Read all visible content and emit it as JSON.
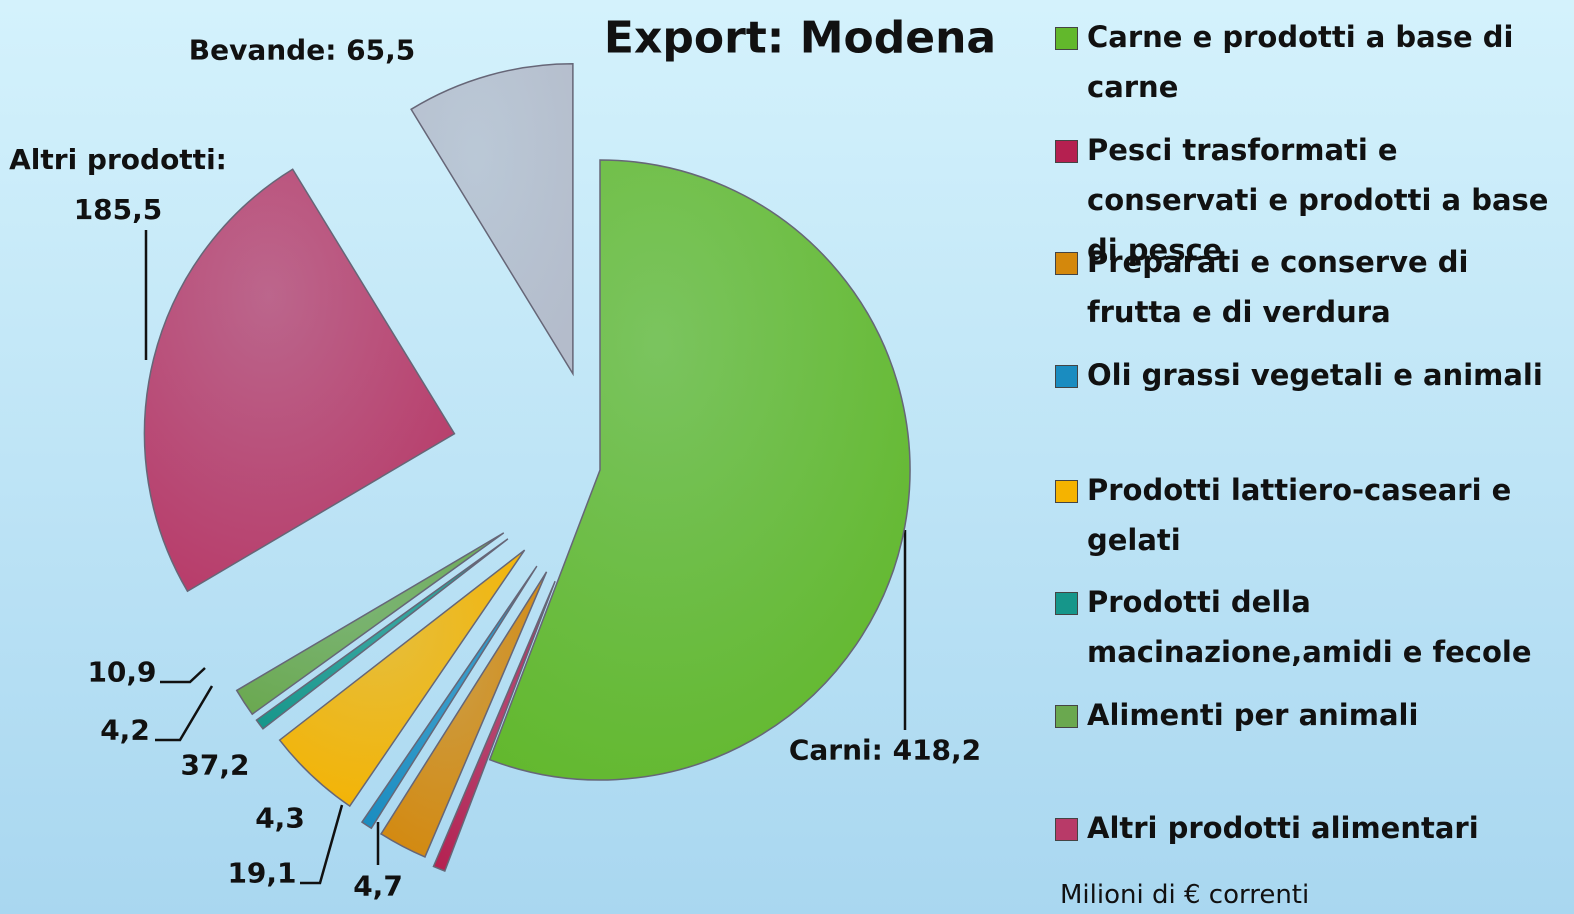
{
  "chart_data": {
    "type": "pie",
    "title": "Export: Modena",
    "categories": [
      "Carne e prodotti a base di carne",
      "Pesci trasformati e conservati e prodotti a base di pesce",
      "Preparati e conserve di frutta e di verdura",
      "Oli grassi vegetali e animali",
      "Prodotti lattiero-caseari e gelati",
      "Prodotti della macinazione,amidi e fecole",
      "Alimenti per animali",
      "Altri prodotti alimentari",
      null
    ],
    "values": [
      418.2,
      4.7,
      19.1,
      4.3,
      37.2,
      4.2,
      10.9,
      185.5,
      65.5
    ],
    "value_labels": [
      "Carni: 418,2",
      "4,7",
      "19,1",
      "4,3",
      "37,2",
      "4,2",
      "10,9",
      "Altri prodotti: 185,5",
      "Bevande: 65,5"
    ],
    "colors": [
      "#62b82c",
      "#b52050",
      "#d4880c",
      "#1a8cc0",
      "#f5b300",
      "#16968a",
      "#6aa84f",
      "#b83a68",
      "#b4bccb"
    ],
    "note": "Milioni di € correnti"
  }
}
